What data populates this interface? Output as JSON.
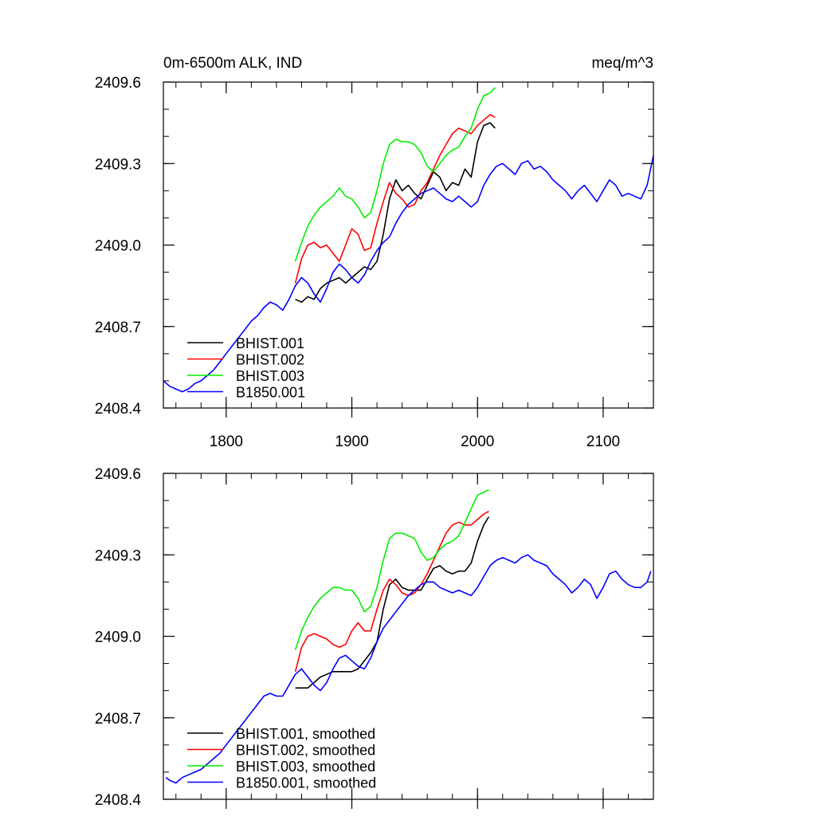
{
  "chart_data": [
    {
      "type": "line",
      "title": "0m-6500m ALK, IND",
      "units": "meq/m^3",
      "xlim": [
        1750,
        2140
      ],
      "ylim": [
        2408.4,
        2409.6
      ],
      "xticks": [
        1800,
        1900,
        2000,
        2100
      ],
      "xtick_labels": [
        "1800",
        "1900",
        "2000",
        "2100"
      ],
      "yticks": [
        2408.4,
        2408.7,
        2409.0,
        2409.3,
        2409.6
      ],
      "ytick_labels": [
        "2408.4",
        "2408.7",
        "2409.0",
        "2409.3",
        "2409.6"
      ],
      "grid": false,
      "legend_position": "bottom-left",
      "series": [
        {
          "name": "BHIST.001",
          "color": "#000000",
          "x": [
            1855,
            1860,
            1865,
            1870,
            1875,
            1880,
            1885,
            1890,
            1895,
            1900,
            1905,
            1910,
            1915,
            1920,
            1925,
            1930,
            1935,
            1940,
            1945,
            1950,
            1955,
            1960,
            1965,
            1970,
            1975,
            1980,
            1985,
            1990,
            1995,
            2000,
            2005,
            2010,
            2014
          ],
          "y": [
            2408.8,
            2408.79,
            2408.81,
            2408.8,
            2408.84,
            2408.86,
            2408.87,
            2408.88,
            2408.86,
            2408.88,
            2408.9,
            2408.92,
            2408.91,
            2408.94,
            2409.04,
            2409.17,
            2409.24,
            2409.2,
            2409.22,
            2409.19,
            2409.17,
            2409.22,
            2409.27,
            2409.25,
            2409.2,
            2409.23,
            2409.22,
            2409.28,
            2409.25,
            2409.38,
            2409.44,
            2409.45,
            2409.43
          ]
        },
        {
          "name": "BHIST.002",
          "color": "#ff0000",
          "x": [
            1855,
            1860,
            1865,
            1870,
            1875,
            1880,
            1885,
            1890,
            1895,
            1900,
            1905,
            1910,
            1915,
            1920,
            1925,
            1930,
            1935,
            1940,
            1945,
            1950,
            1955,
            1960,
            1965,
            1970,
            1975,
            1980,
            1985,
            1990,
            1995,
            2000,
            2005,
            2010,
            2014
          ],
          "y": [
            2408.86,
            2408.95,
            2409.0,
            2409.01,
            2408.99,
            2409.0,
            2408.97,
            2408.94,
            2409.0,
            2409.06,
            2409.04,
            2408.98,
            2408.99,
            2409.08,
            2409.16,
            2409.23,
            2409.19,
            2409.17,
            2409.14,
            2409.15,
            2409.2,
            2409.23,
            2409.28,
            2409.33,
            2409.37,
            2409.41,
            2409.43,
            2409.42,
            2409.41,
            2409.44,
            2409.46,
            2409.48,
            2409.47
          ]
        },
        {
          "name": "BHIST.003",
          "color": "#00ee00",
          "x": [
            1855,
            1860,
            1865,
            1870,
            1875,
            1880,
            1885,
            1890,
            1895,
            1900,
            1905,
            1910,
            1915,
            1920,
            1925,
            1930,
            1935,
            1940,
            1945,
            1950,
            1955,
            1960,
            1965,
            1970,
            1975,
            1980,
            1985,
            1990,
            1995,
            2000,
            2005,
            2010,
            2014
          ],
          "y": [
            2408.94,
            2409.01,
            2409.07,
            2409.11,
            2409.14,
            2409.16,
            2409.18,
            2409.21,
            2409.18,
            2409.17,
            2409.14,
            2409.1,
            2409.12,
            2409.2,
            2409.3,
            2409.37,
            2409.39,
            2409.38,
            2409.38,
            2409.37,
            2409.34,
            2409.29,
            2409.27,
            2409.3,
            2409.33,
            2409.35,
            2409.36,
            2409.4,
            2409.43,
            2409.5,
            2409.55,
            2409.56,
            2409.58
          ]
        },
        {
          "name": "B1850.001",
          "color": "#0000ff",
          "x": [
            1750,
            1755,
            1760,
            1765,
            1770,
            1775,
            1780,
            1785,
            1790,
            1795,
            1800,
            1805,
            1810,
            1815,
            1820,
            1825,
            1830,
            1835,
            1840,
            1845,
            1850,
            1855,
            1860,
            1865,
            1870,
            1875,
            1880,
            1885,
            1890,
            1895,
            1900,
            1905,
            1910,
            1915,
            1920,
            1925,
            1930,
            1935,
            1940,
            1945,
            1950,
            1955,
            1960,
            1965,
            1970,
            1975,
            1980,
            1985,
            1990,
            1995,
            2000,
            2005,
            2010,
            2015,
            2020,
            2025,
            2030,
            2035,
            2040,
            2045,
            2050,
            2055,
            2060,
            2065,
            2070,
            2075,
            2080,
            2085,
            2090,
            2095,
            2100,
            2105,
            2110,
            2115,
            2120,
            2125,
            2130,
            2135,
            2140
          ],
          "y": [
            2408.5,
            2408.48,
            2408.47,
            2408.46,
            2408.47,
            2408.49,
            2408.5,
            2408.52,
            2408.54,
            2408.57,
            2408.6,
            2408.63,
            2408.66,
            2408.69,
            2408.72,
            2408.74,
            2408.77,
            2408.79,
            2408.78,
            2408.76,
            2408.8,
            2408.85,
            2408.88,
            2408.86,
            2408.82,
            2408.79,
            2408.84,
            2408.9,
            2408.93,
            2408.91,
            2408.88,
            2408.86,
            2408.89,
            2408.94,
            2408.98,
            2409.01,
            2409.03,
            2409.08,
            2409.12,
            2409.15,
            2409.17,
            2409.19,
            2409.2,
            2409.21,
            2409.19,
            2409.17,
            2409.16,
            2409.18,
            2409.16,
            2409.14,
            2409.16,
            2409.22,
            2409.26,
            2409.29,
            2409.3,
            2409.28,
            2409.26,
            2409.3,
            2409.31,
            2409.28,
            2409.29,
            2409.27,
            2409.24,
            2409.22,
            2409.2,
            2409.17,
            2409.2,
            2409.22,
            2409.19,
            2409.16,
            2409.2,
            2409.24,
            2409.22,
            2409.18,
            2409.19,
            2409.18,
            2409.17,
            2409.22,
            2409.33
          ]
        }
      ]
    },
    {
      "type": "line",
      "title": "",
      "units": "",
      "xlim": [
        1750,
        2140
      ],
      "ylim": [
        2408.4,
        2409.6
      ],
      "xticks": [
        1800,
        1900,
        2000,
        2100
      ],
      "xtick_labels": [],
      "yticks": [
        2408.4,
        2408.7,
        2409.0,
        2409.3,
        2409.6
      ],
      "ytick_labels": [
        "2408.4",
        "2408.7",
        "2409.0",
        "2409.3",
        "2409.6"
      ],
      "grid": false,
      "legend_position": "bottom-left",
      "series": [
        {
          "name": "BHIST.001, smoothed",
          "color": "#000000",
          "x": [
            1855,
            1860,
            1865,
            1870,
            1875,
            1880,
            1885,
            1890,
            1895,
            1900,
            1905,
            1910,
            1915,
            1920,
            1925,
            1930,
            1935,
            1940,
            1945,
            1950,
            1955,
            1960,
            1965,
            1970,
            1975,
            1980,
            1985,
            1990,
            1995,
            2000,
            2005,
            2009
          ],
          "y": [
            2408.81,
            2408.81,
            2408.81,
            2408.83,
            2408.85,
            2408.86,
            2408.87,
            2408.87,
            2408.87,
            2408.87,
            2408.88,
            2408.91,
            2408.94,
            2408.98,
            2409.1,
            2409.19,
            2409.21,
            2409.18,
            2409.17,
            2409.17,
            2409.17,
            2409.21,
            2409.25,
            2409.26,
            2409.24,
            2409.23,
            2409.24,
            2409.24,
            2409.27,
            2409.35,
            2409.41,
            2409.44
          ]
        },
        {
          "name": "BHIST.002, smoothed",
          "color": "#ff0000",
          "x": [
            1855,
            1860,
            1865,
            1870,
            1875,
            1880,
            1885,
            1890,
            1895,
            1900,
            1905,
            1910,
            1915,
            1920,
            1925,
            1930,
            1935,
            1940,
            1945,
            1950,
            1955,
            1960,
            1965,
            1970,
            1975,
            1980,
            1985,
            1990,
            1995,
            2000,
            2005,
            2009
          ],
          "y": [
            2408.87,
            2408.96,
            2409.0,
            2409.01,
            2409.0,
            2408.99,
            2408.97,
            2408.96,
            2408.97,
            2409.02,
            2409.05,
            2409.02,
            2409.02,
            2409.1,
            2409.17,
            2409.21,
            2409.19,
            2409.16,
            2409.15,
            2409.16,
            2409.19,
            2409.23,
            2409.28,
            2409.33,
            2409.38,
            2409.41,
            2409.42,
            2409.41,
            2409.41,
            2409.43,
            2409.45,
            2409.46
          ]
        },
        {
          "name": "BHIST.003, smoothed",
          "color": "#00ee00",
          "x": [
            1855,
            1860,
            1865,
            1870,
            1875,
            1880,
            1885,
            1890,
            1895,
            1900,
            1905,
            1910,
            1915,
            1920,
            1925,
            1930,
            1935,
            1940,
            1945,
            1950,
            1955,
            1960,
            1965,
            1970,
            1975,
            1980,
            1985,
            1990,
            1995,
            2000,
            2005,
            2009
          ],
          "y": [
            2408.95,
            2409.02,
            2409.07,
            2409.11,
            2409.14,
            2409.16,
            2409.18,
            2409.18,
            2409.17,
            2409.17,
            2409.14,
            2409.09,
            2409.11,
            2409.18,
            2409.28,
            2409.36,
            2409.38,
            2409.38,
            2409.37,
            2409.36,
            2409.31,
            2409.28,
            2409.29,
            2409.32,
            2409.34,
            2409.35,
            2409.37,
            2409.42,
            2409.47,
            2409.52,
            2409.53,
            2409.54
          ]
        },
        {
          "name": "B1850.001, smoothed",
          "color": "#0000ff",
          "x": [
            1752,
            1755,
            1760,
            1765,
            1770,
            1775,
            1780,
            1785,
            1790,
            1795,
            1800,
            1805,
            1810,
            1815,
            1820,
            1825,
            1830,
            1835,
            1840,
            1845,
            1850,
            1855,
            1860,
            1865,
            1870,
            1875,
            1880,
            1885,
            1890,
            1895,
            1900,
            1905,
            1910,
            1915,
            1920,
            1925,
            1930,
            1935,
            1940,
            1945,
            1950,
            1955,
            1960,
            1965,
            1970,
            1975,
            1980,
            1985,
            1990,
            1995,
            2000,
            2005,
            2010,
            2015,
            2020,
            2025,
            2030,
            2035,
            2040,
            2045,
            2050,
            2055,
            2060,
            2065,
            2070,
            2075,
            2080,
            2085,
            2090,
            2095,
            2100,
            2105,
            2110,
            2115,
            2120,
            2125,
            2130,
            2135,
            2138
          ],
          "y": [
            2408.48,
            2408.47,
            2408.46,
            2408.48,
            2408.49,
            2408.5,
            2408.51,
            2408.53,
            2408.55,
            2408.57,
            2408.6,
            2408.63,
            2408.66,
            2408.69,
            2408.72,
            2408.75,
            2408.78,
            2408.79,
            2408.78,
            2408.78,
            2408.82,
            2408.86,
            2408.88,
            2408.85,
            2408.82,
            2408.8,
            2408.83,
            2408.88,
            2408.92,
            2408.93,
            2408.91,
            2408.89,
            2408.88,
            2408.92,
            2408.98,
            2409.03,
            2409.06,
            2409.09,
            2409.12,
            2409.15,
            2409.17,
            2409.19,
            2409.2,
            2409.2,
            2409.18,
            2409.17,
            2409.16,
            2409.17,
            2409.16,
            2409.15,
            2409.18,
            2409.22,
            2409.26,
            2409.28,
            2409.29,
            2409.28,
            2409.27,
            2409.29,
            2409.3,
            2409.28,
            2409.27,
            2409.26,
            2409.23,
            2409.21,
            2409.19,
            2409.16,
            2409.18,
            2409.21,
            2409.19,
            2409.14,
            2409.18,
            2409.23,
            2409.24,
            2409.21,
            2409.19,
            2409.18,
            2409.18,
            2409.2,
            2409.24
          ]
        }
      ]
    }
  ]
}
